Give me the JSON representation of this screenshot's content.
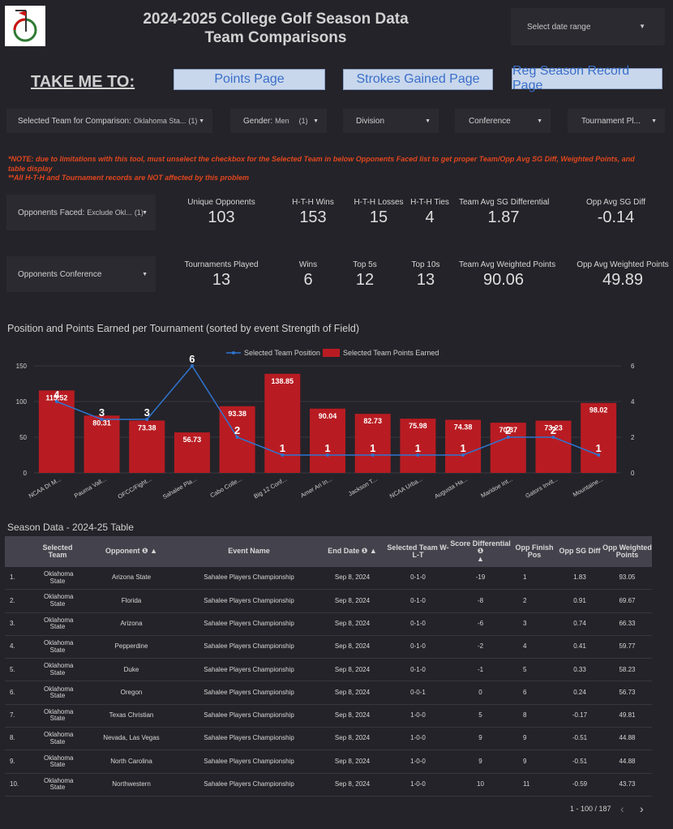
{
  "header": {
    "title_line1": "2024-2025 College Golf Season Data",
    "title_line2": "Team Comparisons",
    "date_range_placeholder": "Select date range"
  },
  "nav": {
    "take_me_to": "TAKE ME TO:",
    "points_page": "Points Page",
    "strokes_gained_page": "Strokes Gained Page",
    "reg_season_record_page": "Reg Season Record Page"
  },
  "filters": {
    "selected_team_label": "Selected Team for Comparison:",
    "selected_team_value": "Oklahoma Sta...",
    "selected_team_count": "(1)",
    "gender_label": "Gender:",
    "gender_value": "Men",
    "gender_count": "(1)",
    "division": "Division",
    "conference": "Conference",
    "tournament": "Tournament Pl...",
    "opponents_faced_label": "Opponents Faced:",
    "opponents_faced_value": "Exclude Okl...",
    "opponents_faced_count": "(1)",
    "opponents_conference": "Opponents Conference"
  },
  "notes": {
    "line1": "*NOTE: due to limitations with this tool, must unselect the checkbox for the Selected Team in below Opponents Faced list to get proper Team/Opp Avg SG Diff, Weighted Points, and table display",
    "line2": "**All H-T-H and Tournament records are NOT affected by this problem"
  },
  "kpis_row1": [
    {
      "label": "Unique Opponents",
      "value": "103"
    },
    {
      "label": "H-T-H Wins",
      "value": "153"
    },
    {
      "label": "H-T-H Losses",
      "value": "15"
    },
    {
      "label": "H-T-H Ties",
      "value": "4"
    },
    {
      "label": "Team Avg SG Differential",
      "value": "1.87"
    },
    {
      "label": "Opp Avg SG Diff",
      "value": "-0.14"
    }
  ],
  "kpis_row2": [
    {
      "label": "Tournaments Played",
      "value": "13"
    },
    {
      "label": "Wins",
      "value": "6"
    },
    {
      "label": "Top 5s",
      "value": "12"
    },
    {
      "label": "Top 10s",
      "value": "13"
    },
    {
      "label": "Team Avg Weighted Points",
      "value": "90.06"
    },
    {
      "label": "Opp Avg Weighted Points",
      "value": "49.89"
    }
  ],
  "chart_title": "Position and Points Earned per Tournament (sorted by event Strength of Field)",
  "chart_data": {
    "type": "bar",
    "title": "Position and Points Earned per Tournament (sorted by event Strength of Field)",
    "categories": [
      "NCAA DI M...",
      "Pauma Vall...",
      "OFCC/Fight...",
      "Sahalee Pla...",
      "Cabo Colle...",
      "Big 12 Conf...",
      "Amer Ari In...",
      "Jackson T...",
      "NCAA Urba...",
      "Augusta Ha...",
      "Maridoe Int...",
      "Gators Invit...",
      "Mountaine..."
    ],
    "series": [
      {
        "name": "Selected Team Points Earned",
        "type": "bar",
        "axis": "left",
        "color": "#b81c22",
        "values": [
          115.52,
          80.31,
          73.38,
          56.73,
          93.38,
          138.85,
          90.04,
          82.73,
          75.98,
          74.38,
          70.37,
          73.23,
          98.02
        ]
      },
      {
        "name": "Selected Team Position",
        "type": "line",
        "axis": "right",
        "color": "#2f74d0",
        "values": [
          4,
          3,
          3,
          6,
          2,
          1,
          1,
          1,
          1,
          1,
          2,
          2,
          1
        ]
      }
    ],
    "legend": [
      "Selected Team Position",
      "Selected Team Points Earned"
    ],
    "y_left_ticks": [
      0,
      50,
      100,
      150
    ],
    "y_right_ticks": [
      0,
      2,
      4,
      6
    ],
    "ylim_left": [
      0,
      150
    ],
    "ylim_right": [
      0,
      6
    ]
  },
  "table": {
    "title": "Season Data - 2024-25 Table",
    "columns": [
      "",
      "Selected Team",
      "Opponent",
      "Event Name",
      "End Date",
      "Selected Team W-L-T",
      "Score Differential",
      "Opp Finish Pos",
      "Opp SG Diff",
      "Opp Weighted Points"
    ],
    "rows": [
      [
        "1.",
        "Oklahoma State",
        "Arizona State",
        "Sahalee Players Championship",
        "Sep 8, 2024",
        "0-1-0",
        "-19",
        "1",
        "1.83",
        "93.05"
      ],
      [
        "2.",
        "Oklahoma State",
        "Florida",
        "Sahalee Players Championship",
        "Sep 8, 2024",
        "0-1-0",
        "-8",
        "2",
        "0.91",
        "69.67"
      ],
      [
        "3.",
        "Oklahoma State",
        "Arizona",
        "Sahalee Players Championship",
        "Sep 8, 2024",
        "0-1-0",
        "-6",
        "3",
        "0.74",
        "66.33"
      ],
      [
        "4.",
        "Oklahoma State",
        "Pepperdine",
        "Sahalee Players Championship",
        "Sep 8, 2024",
        "0-1-0",
        "-2",
        "4",
        "0.41",
        "59.77"
      ],
      [
        "5.",
        "Oklahoma State",
        "Duke",
        "Sahalee Players Championship",
        "Sep 8, 2024",
        "0-1-0",
        "-1",
        "5",
        "0.33",
        "58.23"
      ],
      [
        "6.",
        "Oklahoma State",
        "Oregon",
        "Sahalee Players Championship",
        "Sep 8, 2024",
        "0-0-1",
        "0",
        "6",
        "0.24",
        "56.73"
      ],
      [
        "7.",
        "Oklahoma State",
        "Texas Christian",
        "Sahalee Players Championship",
        "Sep 8, 2024",
        "1-0-0",
        "5",
        "8",
        "-0.17",
        "49.81"
      ],
      [
        "8.",
        "Oklahoma State",
        "Nevada, Las Vegas",
        "Sahalee Players Championship",
        "Sep 8, 2024",
        "1-0-0",
        "9",
        "9",
        "-0.51",
        "44.88"
      ],
      [
        "9.",
        "Oklahoma State",
        "North Carolina",
        "Sahalee Players Championship",
        "Sep 8, 2024",
        "1-0-0",
        "9",
        "9",
        "-0.51",
        "44.88"
      ],
      [
        "10.",
        "Oklahoma State",
        "Northwestern",
        "Sahalee Players Championship",
        "Sep 8, 2024",
        "1-0-0",
        "10",
        "11",
        "-0.59",
        "43.73"
      ]
    ],
    "pager": "1 - 100 / 187"
  },
  "colors": {
    "background": "#242329",
    "bar": "#b81c22",
    "line": "#2f74d0",
    "note": "#e0461e",
    "nav_button": "#c9d7ec"
  }
}
